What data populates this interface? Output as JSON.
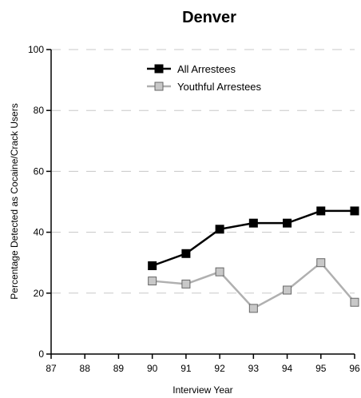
{
  "chart_data": {
    "type": "line",
    "title": "Denver",
    "xlabel": "Interview Year",
    "ylabel": "Percentage Detected as Cocaine/Crack Users",
    "x": [
      "87",
      "88",
      "89",
      "90",
      "91",
      "92",
      "93",
      "94",
      "95",
      "96"
    ],
    "xlim": [
      87,
      96
    ],
    "ylim": [
      0,
      100
    ],
    "yticks": [
      "0",
      "20",
      "40",
      "60",
      "80",
      "100"
    ],
    "grid": "horizontal dashed",
    "legend": "top-left",
    "series": [
      {
        "name": "All Arrestees",
        "color": "#000000",
        "marker_fill": "#000000",
        "points": [
          [
            90,
            29
          ],
          [
            91,
            33
          ],
          [
            92,
            41
          ],
          [
            93,
            43
          ],
          [
            94,
            43
          ],
          [
            95,
            47
          ],
          [
            96,
            47
          ]
        ]
      },
      {
        "name": "Youthful Arrestees",
        "color": "#b0b0b0",
        "marker_fill": "#c8c8c8",
        "points": [
          [
            90,
            24
          ],
          [
            91,
            23
          ],
          [
            92,
            27
          ],
          [
            93,
            15
          ],
          [
            94,
            21
          ],
          [
            95,
            30
          ],
          [
            96,
            17
          ]
        ]
      }
    ]
  }
}
